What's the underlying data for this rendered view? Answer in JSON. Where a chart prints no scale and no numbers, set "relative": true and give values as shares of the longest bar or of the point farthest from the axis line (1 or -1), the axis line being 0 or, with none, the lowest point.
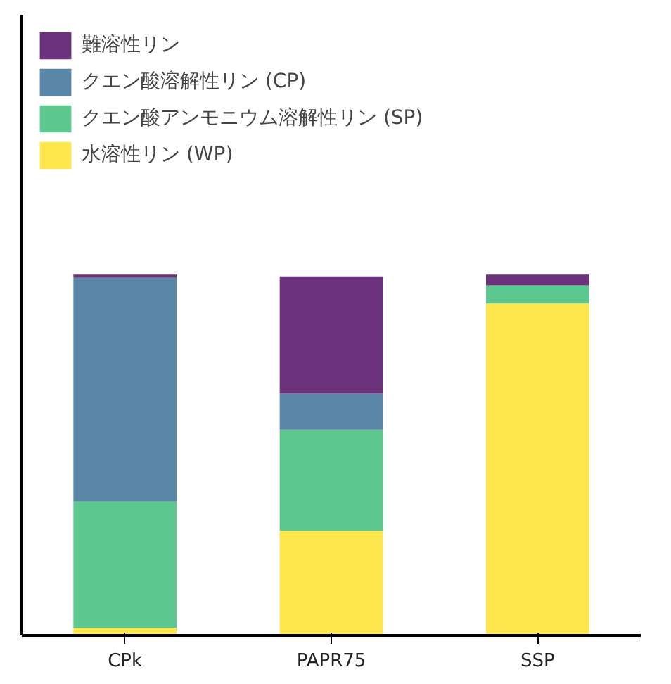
{
  "chart_data": {
    "type": "bar",
    "stacked": true,
    "relative": true,
    "categories": [
      "CPk",
      "PAPR75",
      "SSP"
    ],
    "series": [
      {
        "name": "水溶性リン (WP)",
        "color": "#fde74c",
        "values": [
          0.021,
          0.29,
          0.92
        ]
      },
      {
        "name": "クエン酸アンモニウム溶解性リン (SP)",
        "color": "#5cc78f",
        "values": [
          0.35,
          0.28,
          0.05
        ]
      },
      {
        "name": "クエン酸溶解性リン (CP)",
        "color": "#5a87a8",
        "values": [
          0.62,
          0.1,
          0
        ]
      },
      {
        "name": "難溶性リン",
        "color": "#69327a",
        "values": [
          0.009,
          0.325,
          0.03
        ]
      }
    ],
    "legend": "top left",
    "grid": false
  }
}
